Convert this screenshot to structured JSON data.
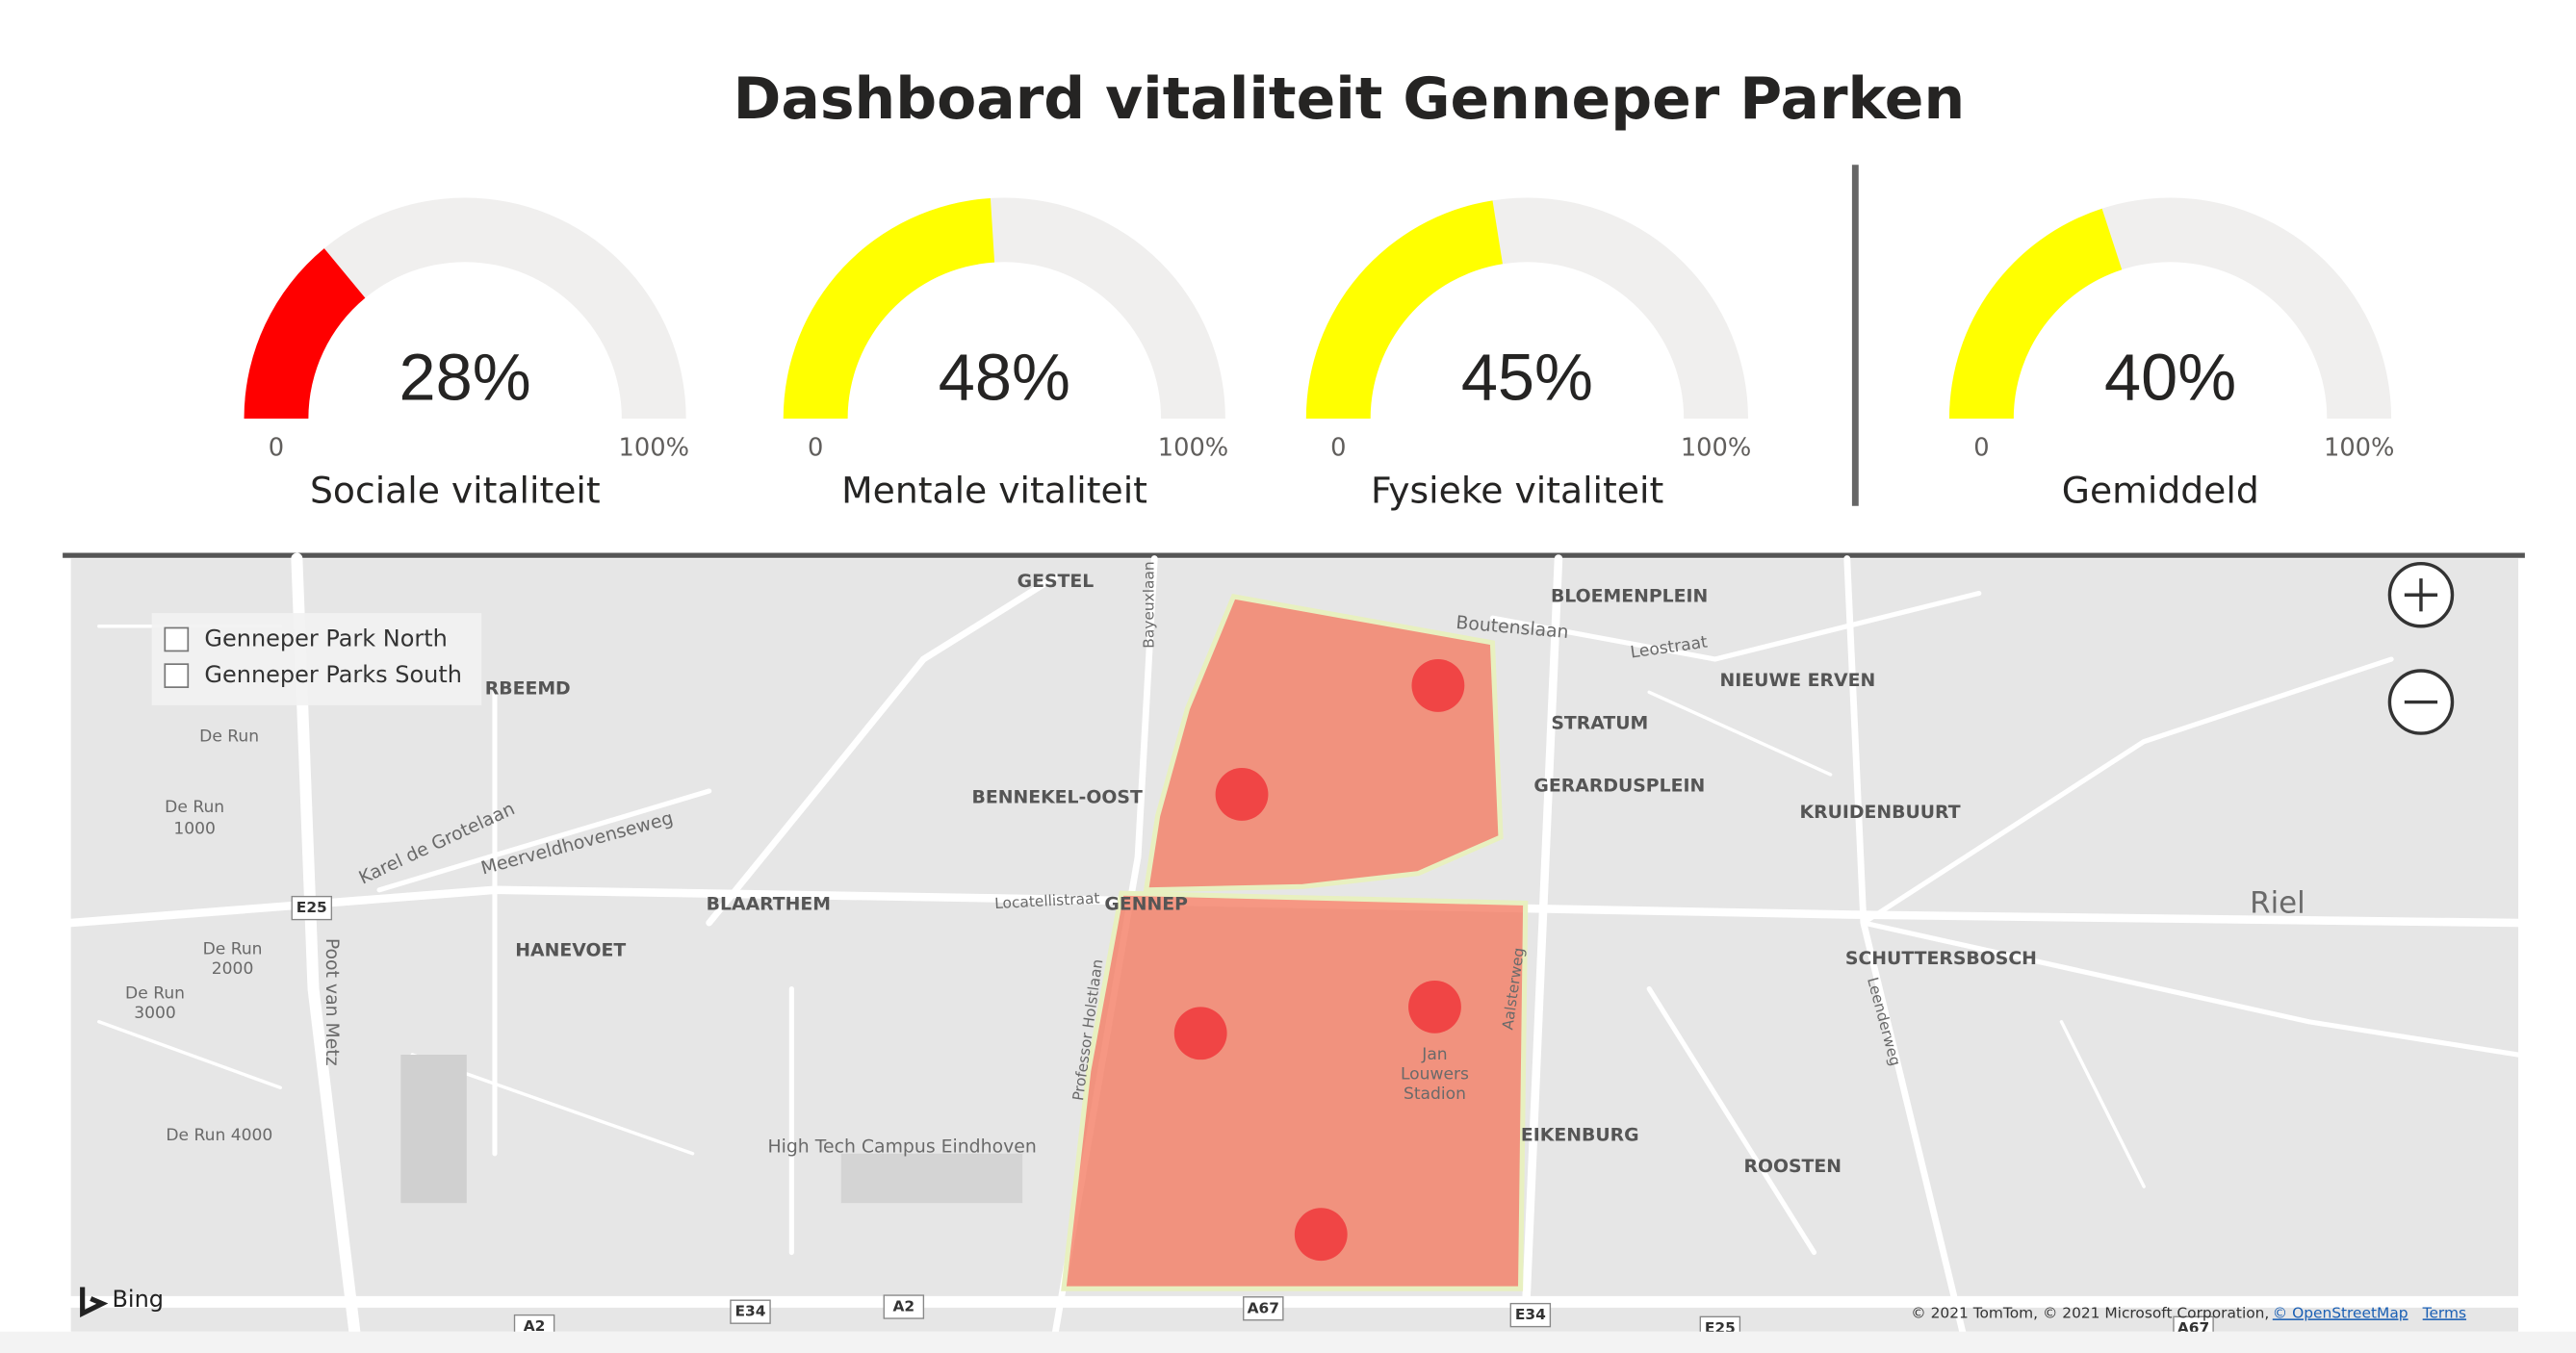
{
  "header": {
    "title": "Dashboard vitaliteit Genneper Parken"
  },
  "chart_data": [
    {
      "type": "gauge",
      "title": "Sociale vitaliteit",
      "values": [
        28
      ],
      "value_labels": [
        "28%"
      ],
      "color": "#ff0000",
      "ylim": [
        0,
        100
      ],
      "yticks": [
        0,
        {
          "value": 100,
          "label": "100%"
        }
      ]
    },
    {
      "type": "gauge",
      "title": "Mentale vitaliteit",
      "values": [
        48
      ],
      "value_labels": [
        "48%"
      ],
      "color": "#ffff00",
      "ylim": [
        0,
        100
      ],
      "yticks": [
        0,
        {
          "value": 100,
          "label": "100%"
        }
      ]
    },
    {
      "type": "gauge",
      "title": "Fysieke vitaliteit",
      "values": [
        45
      ],
      "value_labels": [
        "45%"
      ],
      "color": "#ffff00",
      "ylim": [
        0,
        100
      ],
      "yticks": [
        0,
        {
          "value": 100,
          "label": "100%"
        }
      ]
    },
    {
      "type": "gauge",
      "title": "Gemiddeld",
      "values": [
        40
      ],
      "value_labels": [
        "40%"
      ],
      "color": "#ffff00",
      "ylim": [
        0,
        100
      ],
      "yticks": [
        0,
        {
          "value": 100,
          "label": "100%"
        }
      ]
    }
  ],
  "map": {
    "legend": [
      "Genneper Park North",
      "Genneper Parks South"
    ],
    "labels": [
      "GESTEL",
      "BLOEMENPLEIN",
      "Boutenslaan",
      "Leostraat",
      "NIEUWE ERVEN",
      "STRATUM",
      "GERARDUSPLEIN",
      "KRUIDENBUURT",
      "BENNEKEL-OOST",
      "BLAARTHEM",
      "GENNEP",
      "Locatellistraat",
      "HANEVOET",
      "De Run",
      "De Run",
      "1000",
      "De Run",
      "2000",
      "De Run",
      "3000",
      "De Run 4000",
      "Riel",
      "SCHUTTERSBOSCH",
      "Jan",
      "Louwers",
      "Stadion",
      "EIKENBURG",
      "ROOSTEN",
      "High Tech Campus Eindhoven",
      "Poot van Metz",
      "Karel de Grotelaan",
      "Meerveldhovenseweg",
      "Professor Holstlaan",
      "Aalsterweg",
      "Leenderweg",
      "Bayeuxlaan",
      "RBEEMD"
    ],
    "road_signs": [
      "E25",
      "A2",
      "E34",
      "A2",
      "A67",
      "E34",
      "E25",
      "A67"
    ],
    "logo": "Bing",
    "attribution": "© 2021 TomTom, © 2021 Microsoft Corporation,",
    "osm_link": "© OpenStreetMap",
    "terms_link": "Terms"
  }
}
